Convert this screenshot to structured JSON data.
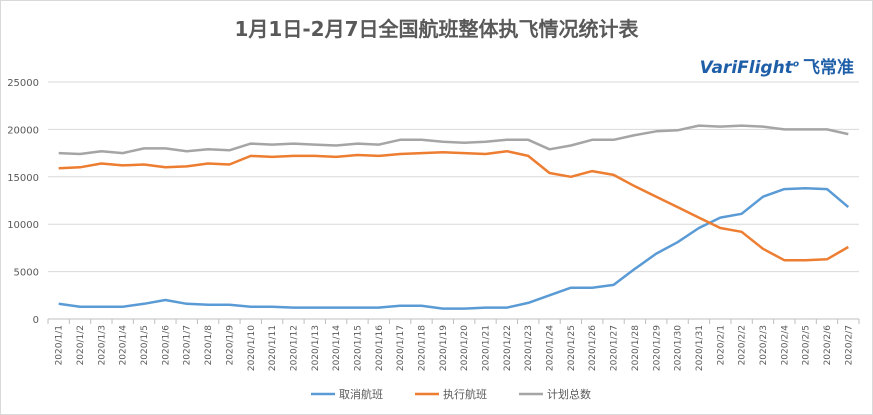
{
  "chart_data": {
    "type": "line",
    "title": "1月1日-2月7日全国航班整体执飞情况统计表",
    "xlabel": "",
    "ylabel": "",
    "ylim": [
      0,
      25000
    ],
    "yticks": [
      0,
      5000,
      10000,
      15000,
      20000,
      25000
    ],
    "grid": true,
    "legend": "bottom",
    "categories": [
      "2020/1/1",
      "2020/1/2",
      "2020/1/3",
      "2020/1/4",
      "2020/1/5",
      "2020/1/6",
      "2020/1/7",
      "2020/1/8",
      "2020/1/9",
      "2020/1/10",
      "2020/1/11",
      "2020/1/12",
      "2020/1/13",
      "2020/1/14",
      "2020/1/15",
      "2020/1/16",
      "2020/1/17",
      "2020/1/18",
      "2020/1/19",
      "2020/1/20",
      "2020/1/21",
      "2020/1/22",
      "2020/1/23",
      "2020/1/24",
      "2020/1/25",
      "2020/1/26",
      "2020/1/27",
      "2020/1/28",
      "2020/1/29",
      "2020/1/30",
      "2020/1/31",
      "2020/2/1",
      "2020/2/2",
      "2020/2/3",
      "2020/2/4",
      "2020/2/5",
      "2020/2/6",
      "2020/2/7"
    ],
    "series": [
      {
        "name": "取消航班",
        "color": "#5b9bd5",
        "values": [
          1600,
          1300,
          1300,
          1300,
          1600,
          2000,
          1600,
          1500,
          1500,
          1300,
          1300,
          1200,
          1200,
          1200,
          1200,
          1200,
          1400,
          1400,
          1100,
          1100,
          1200,
          1200,
          1700,
          2500,
          3300,
          3300,
          3600,
          5300,
          6900,
          8100,
          9600,
          10700,
          11100,
          12900,
          13700,
          13800,
          13700,
          11800
        ]
      },
      {
        "name": "执行航班",
        "color": "#ed7d31",
        "values": [
          15900,
          16000,
          16400,
          16200,
          16300,
          16000,
          16100,
          16400,
          16300,
          17200,
          17100,
          17200,
          17200,
          17100,
          17300,
          17200,
          17400,
          17500,
          17600,
          17500,
          17400,
          17700,
          17200,
          15400,
          15000,
          15600,
          15200,
          14000,
          12900,
          11800,
          10700,
          9600,
          9200,
          7400,
          6200,
          6200,
          6300,
          7600
        ]
      },
      {
        "name": "计划总数",
        "color": "#a5a5a5",
        "values": [
          17500,
          17400,
          17700,
          17500,
          18000,
          18000,
          17700,
          17900,
          17800,
          18500,
          18400,
          18500,
          18400,
          18300,
          18500,
          18400,
          18900,
          18900,
          18700,
          18600,
          18700,
          18900,
          18900,
          17900,
          18300,
          18900,
          18900,
          19400,
          19800,
          19900,
          20400,
          20300,
          20400,
          20300,
          20000,
          20000,
          20000,
          19500
        ]
      }
    ]
  },
  "logo": {
    "brand": "VariFlight",
    "cn": "飞常准"
  }
}
